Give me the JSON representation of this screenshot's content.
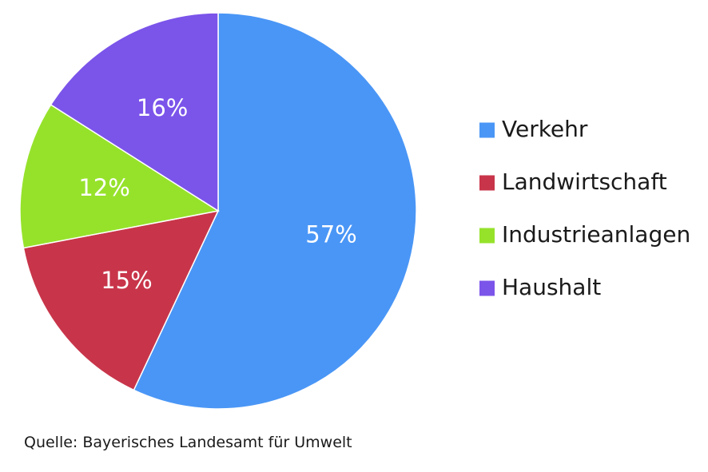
{
  "chart_data": {
    "type": "pie",
    "categories": [
      "Verkehr",
      "Landwirtschaft",
      "Industrieanlagen",
      "Haushalt"
    ],
    "values": [
      57,
      15,
      12,
      16
    ],
    "value_labels": [
      "57%",
      "15%",
      "12%",
      "16%"
    ],
    "colors": [
      "#4a96f6",
      "#c8354a",
      "#96e22b",
      "#7b54ea"
    ],
    "start_angle": "12 o'clock",
    "direction": "clockwise",
    "legend_position": "right",
    "title": ""
  },
  "source": "Quelle: Bayerisches Landesamt für Umwelt"
}
